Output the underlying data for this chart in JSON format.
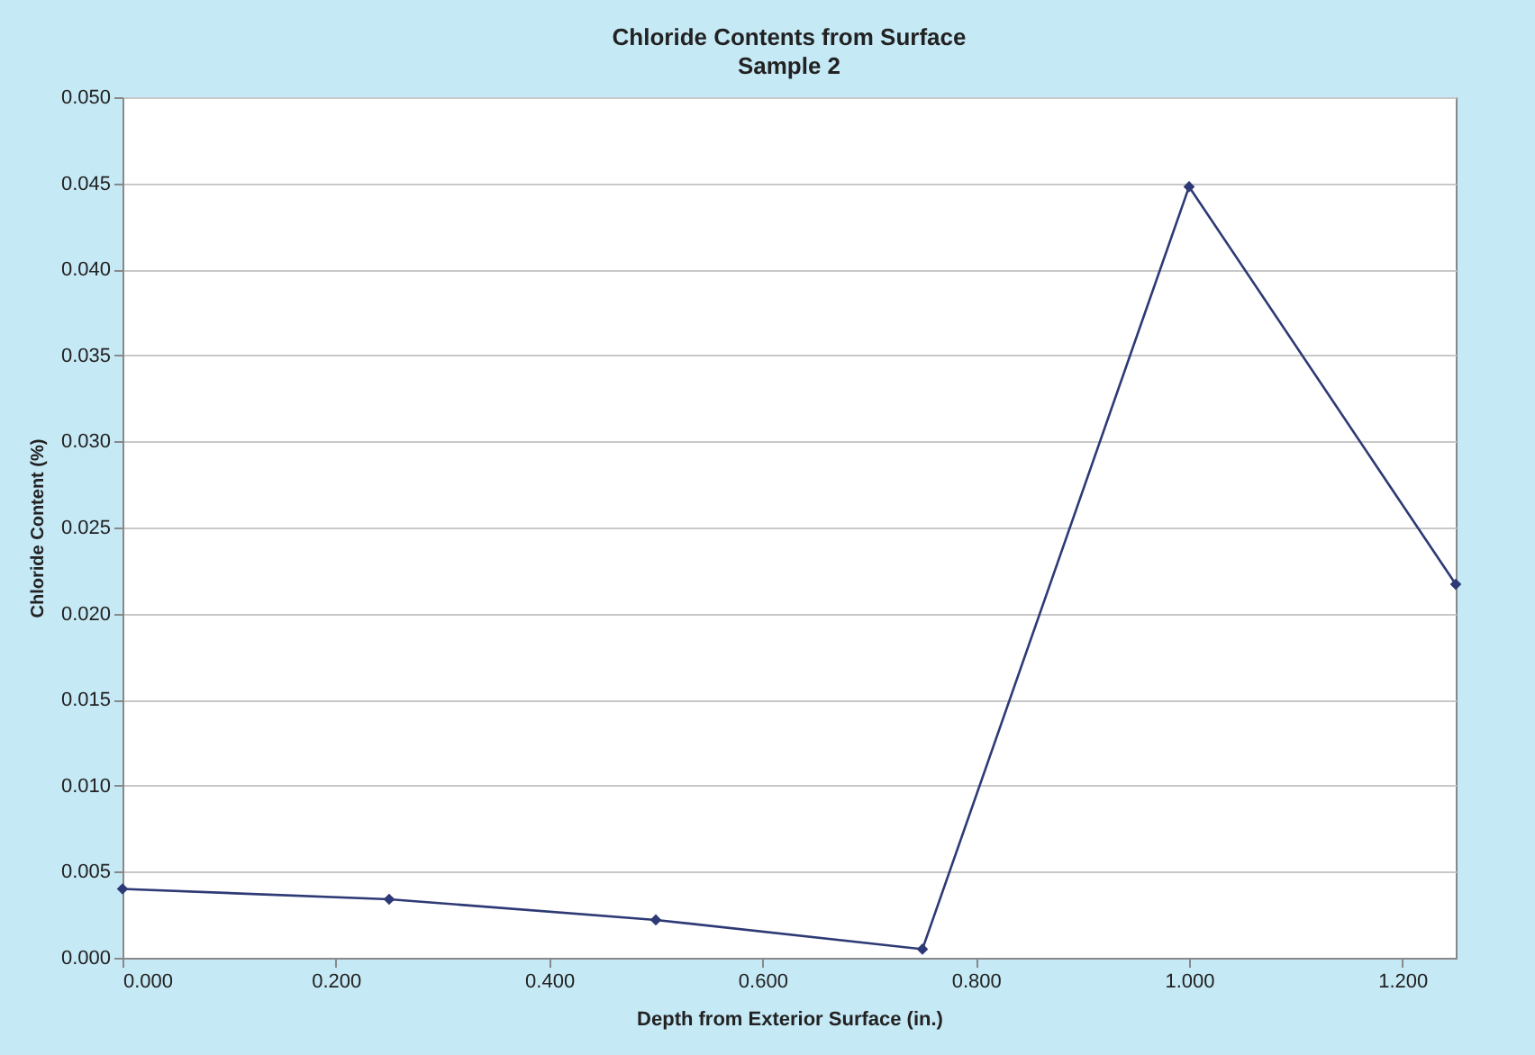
{
  "chart_data": {
    "type": "line",
    "title": "Chloride Contents from Surface",
    "subtitle": "Sample 2",
    "xlabel": "Depth from Exterior Surface (in.)",
    "ylabel": "Chloride Content (%)",
    "x": [
      0.0,
      0.25,
      0.5,
      0.75,
      1.0,
      1.25
    ],
    "series": [
      {
        "color": "#2e3a75",
        "values": [
          0.004,
          0.0034,
          0.0022,
          0.0005,
          0.0448,
          0.0217
        ]
      }
    ],
    "xlim": [
      0,
      1.25
    ],
    "xticks": [
      {
        "value": 0,
        "label": "0.000"
      },
      {
        "value": 0.2,
        "label": "0.200"
      },
      {
        "value": 0.4,
        "label": "0.400"
      },
      {
        "value": 0.6,
        "label": "0.600"
      },
      {
        "value": 0.8,
        "label": "0.800"
      },
      {
        "value": 1.0,
        "label": "1.000"
      },
      {
        "value": 1.2,
        "label": "1.200"
      }
    ],
    "ylim": [
      0,
      0.05
    ],
    "yticks": [
      {
        "value": 0,
        "label": "0.000"
      },
      {
        "value": 0.005,
        "label": "0.005"
      },
      {
        "value": 0.01,
        "label": "0.010"
      },
      {
        "value": 0.015,
        "label": "0.015"
      },
      {
        "value": 0.02,
        "label": "0.020"
      },
      {
        "value": 0.025,
        "label": "0.025"
      },
      {
        "value": 0.03,
        "label": "0.030"
      },
      {
        "value": 0.035,
        "label": "0.035"
      },
      {
        "value": 0.04,
        "label": "0.040"
      },
      {
        "value": 0.045,
        "label": "0.045"
      },
      {
        "value": 0.05,
        "label": "0.050"
      }
    ],
    "grid": "y",
    "marker": "diamond",
    "line_style": "solid"
  }
}
